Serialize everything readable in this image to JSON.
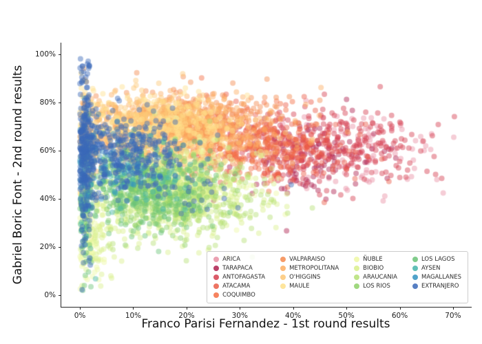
{
  "chart_data": {
    "type": "scatter",
    "title": "",
    "xlabel": "Franco Parisi Fernandez - 1st round results",
    "ylabel": "Gabriel Boric Font - 2nd round results",
    "xlim": [
      -3.5,
      73.5
    ],
    "ylim": [
      -5,
      105
    ],
    "x_ticks": [
      0,
      10,
      20,
      30,
      40,
      50,
      60,
      70
    ],
    "y_ticks": [
      0,
      20,
      40,
      60,
      80,
      100
    ],
    "tick_suffix": "%",
    "grid": false,
    "marker": {
      "radius": 4,
      "alpha": 0.45
    },
    "legend": {
      "loc": "lower right",
      "ncols": 4,
      "rows_per_column": [
        5,
        4,
        4,
        4
      ]
    },
    "series": [
      {
        "name": "ARICA",
        "color": "#e891a4",
        "clusters": [
          {
            "cx": 44,
            "cy": 58,
            "sx": 9,
            "sy": 9,
            "n": 90
          },
          {
            "cx": 58,
            "cy": 62,
            "sx": 6,
            "sy": 9,
            "n": 40
          }
        ]
      },
      {
        "name": "TARAPACA",
        "color": "#ae1e4d",
        "clusters": [
          {
            "cx": 42,
            "cy": 57,
            "sx": 8,
            "sy": 8,
            "n": 130
          }
        ]
      },
      {
        "name": "ANTOFAGASTA",
        "color": "#d53e4f",
        "clusters": [
          {
            "cx": 46,
            "cy": 62,
            "sx": 8,
            "sy": 8,
            "n": 220
          },
          {
            "cx": 58,
            "cy": 60,
            "sx": 5,
            "sy": 8,
            "n": 40
          }
        ]
      },
      {
        "name": "ATACAMA",
        "color": "#ea5c47",
        "clusters": [
          {
            "cx": 37,
            "cy": 60,
            "sx": 8,
            "sy": 8,
            "n": 200
          }
        ]
      },
      {
        "name": "COQUIMBO",
        "color": "#f46d43",
        "clusters": [
          {
            "cx": 26,
            "cy": 62,
            "sx": 8,
            "sy": 8,
            "n": 260
          }
        ]
      },
      {
        "name": "VALPARAISO",
        "color": "#f58a4e",
        "clusters": [
          {
            "cx": 21,
            "cy": 70,
            "sx": 8,
            "sy": 7,
            "n": 420
          }
        ]
      },
      {
        "name": "METROPOLITANA",
        "color": "#fdae61",
        "clusters": [
          {
            "cx": 18,
            "cy": 68,
            "sx": 9,
            "sy": 7,
            "n": 600
          },
          {
            "cx": 1.5,
            "cy": 65,
            "sx": 1,
            "sy": 12,
            "n": 90
          }
        ]
      },
      {
        "name": "O'HIGGINS",
        "color": "#fdc776",
        "clusters": [
          {
            "cx": 14,
            "cy": 72,
            "sx": 6,
            "sy": 6,
            "n": 300
          }
        ]
      },
      {
        "name": "MAULE",
        "color": "#fee08b",
        "clusters": [
          {
            "cx": 15,
            "cy": 68,
            "sx": 7,
            "sy": 8,
            "n": 300
          },
          {
            "cx": 1,
            "cy": 55,
            "sx": 0.9,
            "sy": 20,
            "n": 90
          }
        ]
      },
      {
        "name": "ÑUBLE",
        "color": "#eef8a5",
        "clusters": [
          {
            "cx": 20,
            "cy": 48,
            "sx": 7,
            "sy": 9,
            "n": 180
          },
          {
            "cx": 2,
            "cy": 20,
            "sx": 1.5,
            "sy": 8,
            "n": 50
          }
        ]
      },
      {
        "name": "BIOBIO",
        "color": "#d9ef8b",
        "clusters": [
          {
            "cx": 18,
            "cy": 42,
            "sx": 8,
            "sy": 9,
            "n": 450
          },
          {
            "cx": 3,
            "cy": 25,
            "sx": 2.5,
            "sy": 9,
            "n": 80
          }
        ]
      },
      {
        "name": "ARAUCANIA",
        "color": "#b5e176",
        "clusters": [
          {
            "cx": 20,
            "cy": 40,
            "sx": 7,
            "sy": 9,
            "n": 330
          }
        ]
      },
      {
        "name": "LOS RIOS",
        "color": "#8fd168",
        "clusters": [
          {
            "cx": 14,
            "cy": 43,
            "sx": 5,
            "sy": 8,
            "n": 200
          }
        ]
      },
      {
        "name": "LOS LAGOS",
        "color": "#6bc377",
        "clusters": [
          {
            "cx": 13,
            "cy": 45,
            "sx": 6,
            "sy": 9,
            "n": 300
          },
          {
            "cx": 1,
            "cy": 35,
            "sx": 0.8,
            "sy": 14,
            "n": 70
          }
        ]
      },
      {
        "name": "AYSEN",
        "color": "#45b5aa",
        "clusters": [
          {
            "cx": 11,
            "cy": 50,
            "sx": 5,
            "sy": 7,
            "n": 80
          },
          {
            "cx": 1.2,
            "cy": 40,
            "sx": 0.9,
            "sy": 10,
            "n": 30
          }
        ]
      },
      {
        "name": "MAGALLANES",
        "color": "#3193c1",
        "clusters": [
          {
            "cx": 8,
            "cy": 55,
            "sx": 4,
            "sy": 7,
            "n": 60
          },
          {
            "cx": 1.3,
            "cy": 55,
            "sx": 0.9,
            "sy": 12,
            "n": 30
          }
        ]
      },
      {
        "name": "EXTRANJERO",
        "color": "#3a68b8",
        "clusters": [
          {
            "cx": 9,
            "cy": 59,
            "sx": 5,
            "sy": 8,
            "n": 320
          },
          {
            "cx": 1,
            "cy": 58,
            "sx": 1.1,
            "sy": 19,
            "n": 260
          },
          {
            "cx": 20,
            "cy": 45,
            "sx": 8,
            "sy": 8,
            "n": 25
          }
        ]
      }
    ]
  }
}
